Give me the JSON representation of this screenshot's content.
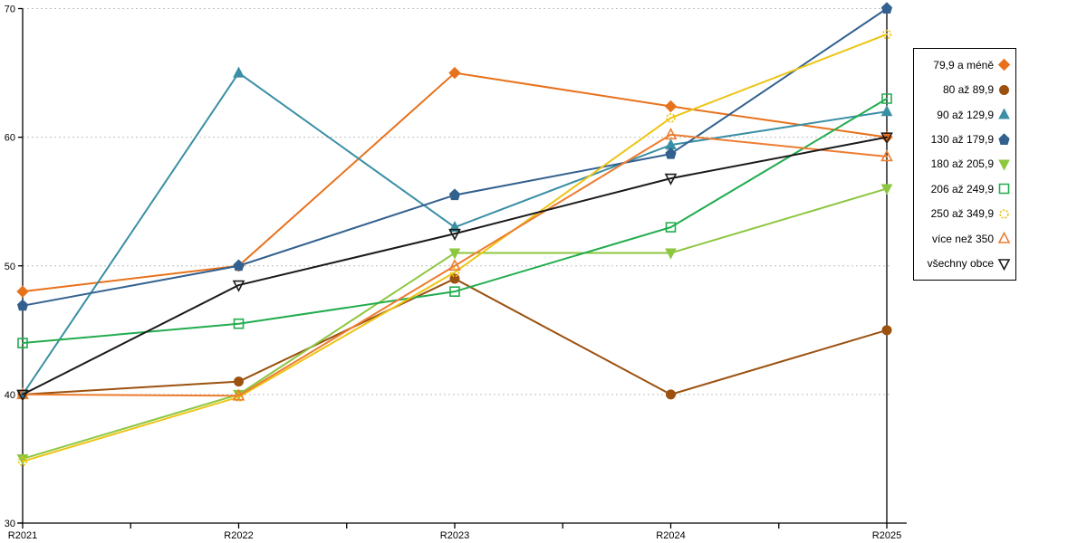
{
  "chart_data": {
    "type": "line",
    "title": "",
    "xlabel": "",
    "ylabel": "",
    "categories": [
      "R2021",
      "R2022",
      "R2023",
      "R2024",
      "R2025"
    ],
    "ylim": [
      30,
      70
    ],
    "yticks": [
      30,
      40,
      50,
      60,
      70
    ],
    "grid": "horizontal-dotted",
    "legend_position": "right-box",
    "series": [
      {
        "name": "79,9 a méně",
        "color": "#E8711B",
        "marker": "diamond",
        "filled": true,
        "values": [
          48,
          50,
          65,
          62.4,
          60
        ]
      },
      {
        "name": "80 až 89,9",
        "color": "#9C510F",
        "marker": "circle",
        "filled": true,
        "values": [
          40,
          41,
          49,
          40,
          45
        ]
      },
      {
        "name": "90 až 129,9",
        "color": "#3A8FA5",
        "marker": "triangle-up",
        "filled": true,
        "values": [
          40,
          65,
          53,
          59.4,
          62
        ]
      },
      {
        "name": "130 až 179,9",
        "color": "#33618F",
        "marker": "pentagon",
        "filled": true,
        "values": [
          46.9,
          50,
          55.5,
          58.7,
          70
        ]
      },
      {
        "name": "180 až 205,9",
        "color": "#8DC63F",
        "marker": "triangle-down",
        "filled": true,
        "values": [
          35,
          40,
          51,
          51,
          56
        ]
      },
      {
        "name": "206 až 249,9",
        "color": "#22AC4E",
        "marker": "square",
        "filled": false,
        "values": [
          44,
          45.5,
          48,
          53,
          63
        ]
      },
      {
        "name": "250 až 349,9",
        "color": "#EDC413",
        "marker": "circle",
        "filled": false,
        "values": [
          34.8,
          39.8,
          49.5,
          61.5,
          68
        ]
      },
      {
        "name": "více než 350",
        "color": "#ED7D31",
        "marker": "triangle-up",
        "filled": false,
        "values": [
          40,
          39.9,
          50,
          60.2,
          58.5
        ]
      },
      {
        "name": "všechny obce",
        "color": "#1A1A1A",
        "marker": "triangle-down",
        "filled": false,
        "values": [
          40,
          48.5,
          52.5,
          56.8,
          60
        ]
      }
    ],
    "gridline_color": "#BFBFBF",
    "axis_color": "#000000"
  }
}
